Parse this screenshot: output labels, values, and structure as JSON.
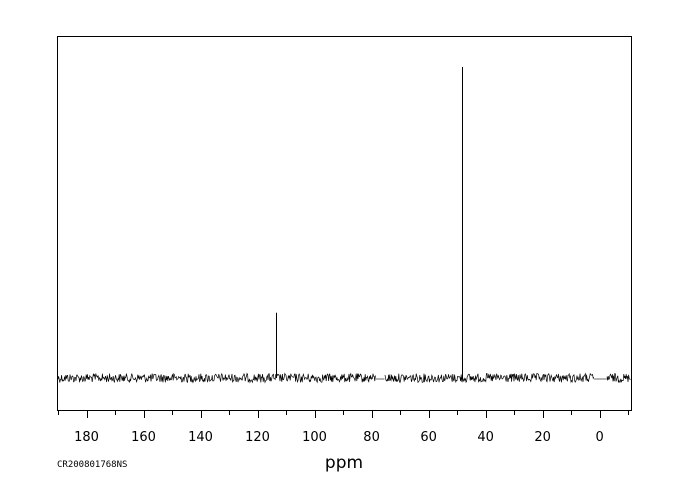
{
  "chart_data": {
    "type": "line",
    "xlabel": "ppm",
    "ylabel": "",
    "xlim": [
      190,
      -11
    ],
    "x_axis_reversed": true,
    "ylim": [
      0,
      1
    ],
    "x_ticks": [
      180,
      160,
      140,
      120,
      100,
      80,
      60,
      40,
      20,
      0
    ],
    "grid": false,
    "legend": "none",
    "spectrum_code": "CR200801768NS",
    "peaks": [
      {
        "ppm": 113.7,
        "intensity": 0.21
      },
      {
        "ppm": 48.4,
        "intensity": 1.0
      }
    ],
    "baseline_gaps_ppm": [
      [
        78.5,
        75.5
      ],
      [
        2.0,
        -2.5
      ]
    ]
  },
  "colors": {
    "trace": "#000000",
    "frame": "#000000",
    "background": "#ffffff"
  }
}
